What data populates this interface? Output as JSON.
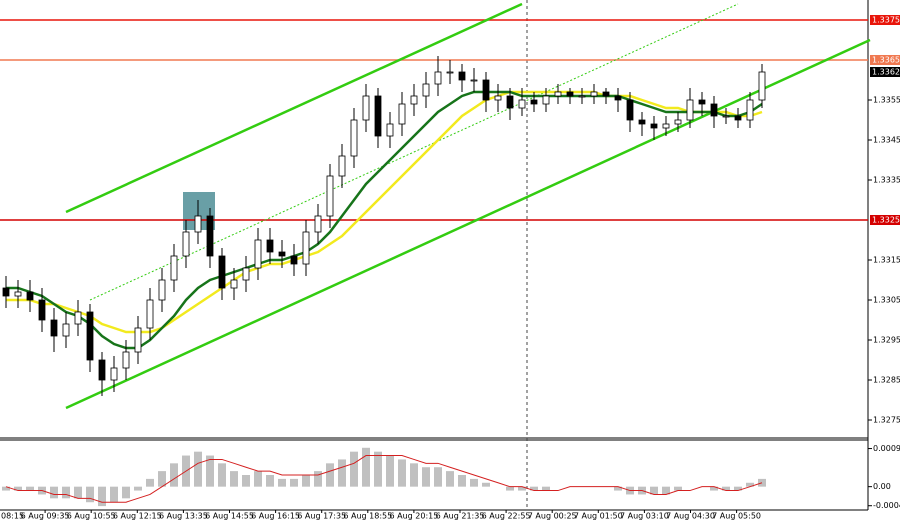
{
  "chart_data": {
    "type": "candlestick",
    "open": [
      1.3308,
      1.3306,
      1.3307,
      1.3305,
      1.33,
      1.3296,
      1.3299,
      1.3302,
      1.329,
      1.3285,
      1.3288,
      1.3292,
      1.3298,
      1.3305,
      1.331,
      1.3316,
      1.3322,
      1.3326,
      1.3316,
      1.3308,
      1.331,
      1.3313,
      1.332,
      1.3317,
      1.3316,
      1.3314,
      1.3322,
      1.3326,
      1.3336,
      1.3341,
      1.335,
      1.3356,
      1.3346,
      1.3349,
      1.3354,
      1.3356,
      1.3359,
      1.3362,
      1.3362,
      1.336,
      1.336,
      1.3355,
      1.3356,
      1.3353,
      1.3355,
      1.3354,
      1.3356,
      1.3357,
      1.3356,
      1.3356,
      1.3357,
      1.3356,
      1.3355,
      1.335,
      1.3349,
      1.3348,
      1.3349,
      1.335,
      1.3355,
      1.3354,
      1.3351,
      1.3351,
      1.335,
      1.3355
    ],
    "high": [
      1.3311,
      1.331,
      1.331,
      1.3308,
      1.3303,
      1.3302,
      1.3305,
      1.3304,
      1.3292,
      1.3291,
      1.3295,
      1.3301,
      1.3308,
      1.3313,
      1.3319,
      1.3325,
      1.333,
      1.3328,
      1.3318,
      1.3313,
      1.3316,
      1.3323,
      1.3323,
      1.332,
      1.3319,
      1.3325,
      1.3329,
      1.3339,
      1.3344,
      1.3353,
      1.3359,
      1.3358,
      1.3352,
      1.3357,
      1.3359,
      1.3362,
      1.3366,
      1.3365,
      1.3364,
      1.3363,
      1.3362,
      1.3359,
      1.3358,
      1.3358,
      1.3357,
      1.3358,
      1.3359,
      1.3358,
      1.3358,
      1.3359,
      1.3358,
      1.3358,
      1.3357,
      1.3352,
      1.3351,
      1.3351,
      1.3352,
      1.3358,
      1.3357,
      1.3356,
      1.3353,
      1.3353,
      1.3357,
      1.3364
    ],
    "low": [
      1.3303,
      1.3303,
      1.3302,
      1.3297,
      1.3292,
      1.3293,
      1.3296,
      1.3287,
      1.3281,
      1.3282,
      1.3285,
      1.3289,
      1.3295,
      1.3302,
      1.3307,
      1.3313,
      1.3319,
      1.3313,
      1.3305,
      1.3305,
      1.3307,
      1.331,
      1.3314,
      1.3313,
      1.3311,
      1.3311,
      1.3319,
      1.3323,
      1.3333,
      1.3338,
      1.3347,
      1.3343,
      1.3343,
      1.3346,
      1.3351,
      1.3353,
      1.3356,
      1.3359,
      1.3357,
      1.3357,
      1.3352,
      1.3352,
      1.335,
      1.3351,
      1.3352,
      1.3352,
      1.3354,
      1.3354,
      1.3354,
      1.3354,
      1.3354,
      1.3352,
      1.3347,
      1.3346,
      1.3345,
      1.3346,
      1.3347,
      1.3348,
      1.3351,
      1.3348,
      1.3349,
      1.3348,
      1.3348,
      1.3353
    ],
    "close": [
      1.3306,
      1.3307,
      1.3305,
      1.33,
      1.3296,
      1.3299,
      1.3302,
      1.329,
      1.3285,
      1.3288,
      1.3292,
      1.3298,
      1.3305,
      1.331,
      1.3316,
      1.3322,
      1.3326,
      1.3316,
      1.3308,
      1.331,
      1.3313,
      1.332,
      1.3317,
      1.3316,
      1.3314,
      1.3322,
      1.3326,
      1.3336,
      1.3341,
      1.335,
      1.3356,
      1.3346,
      1.3349,
      1.3354,
      1.3356,
      1.3359,
      1.3362,
      1.3362,
      1.336,
      1.336,
      1.3355,
      1.3356,
      1.3353,
      1.3355,
      1.3354,
      1.3356,
      1.3357,
      1.3356,
      1.3356,
      1.3357,
      1.3356,
      1.3355,
      1.335,
      1.3349,
      1.3348,
      1.3349,
      1.335,
      1.3355,
      1.3354,
      1.3351,
      1.3351,
      1.335,
      1.3355,
      1.3362
    ],
    "ylim": [
      1.327,
      1.338
    ],
    "yticks": [
      1.3275,
      1.3285,
      1.3295,
      1.3305,
      1.3315,
      1.3335,
      1.3345,
      1.3355
    ],
    "x_labels": [
      "08:15",
      "6 Aug 09:35",
      "6 Aug 10:55",
      "6 Aug 12:15",
      "6 Aug 13:35",
      "6 Aug 14:55",
      "6 Aug 16:15",
      "6 Aug 17:35",
      "6 Aug 18:55",
      "6 Aug 20:15",
      "6 Aug 21:35",
      "6 Aug 22:55",
      "7 Aug 00:25",
      "7 Aug 01:50",
      "7 Aug 03:10",
      "7 Aug 04:30",
      "7 Aug 05:50"
    ],
    "levels": [
      {
        "value": 1.3375,
        "color": "#e8150a"
      },
      {
        "value": 1.3365,
        "color": "#f07850"
      },
      {
        "value": 1.3325,
        "color": "#d40000"
      }
    ],
    "current_price": 1.3362,
    "moving_averages": [
      {
        "color": "#f2ea1e",
        "values": [
          1.3305,
          1.3305,
          1.3305,
          1.3304,
          1.3304,
          1.3303,
          1.3302,
          1.3301,
          1.3299,
          1.3298,
          1.3297,
          1.3297,
          1.3297,
          1.3298,
          1.33,
          1.3302,
          1.3304,
          1.3306,
          1.3308,
          1.331,
          1.3312,
          1.3313,
          1.3314,
          1.3314,
          1.3315,
          1.3316,
          1.3317,
          1.3319,
          1.3321,
          1.3324,
          1.3327,
          1.333,
          1.3333,
          1.3336,
          1.3339,
          1.3342,
          1.3345,
          1.3348,
          1.3351,
          1.3353,
          1.3355,
          1.3356,
          1.3357,
          1.3357,
          1.3357,
          1.3357,
          1.3357,
          1.3357,
          1.3357,
          1.3357,
          1.3356,
          1.3356,
          1.3356,
          1.3355,
          1.3354,
          1.3353,
          1.3353,
          1.3352,
          1.3352,
          1.3352,
          1.3352,
          1.3351,
          1.3351,
          1.3352
        ]
      },
      {
        "color": "#17741a",
        "values": [
          1.3308,
          1.3308,
          1.3307,
          1.3306,
          1.3304,
          1.3302,
          1.3301,
          1.3299,
          1.3296,
          1.3294,
          1.3293,
          1.3293,
          1.3295,
          1.3298,
          1.3301,
          1.3305,
          1.3308,
          1.331,
          1.3311,
          1.3312,
          1.3313,
          1.3314,
          1.3315,
          1.3315,
          1.3316,
          1.3317,
          1.3319,
          1.3322,
          1.3326,
          1.333,
          1.3334,
          1.3337,
          1.334,
          1.3343,
          1.3346,
          1.3349,
          1.3352,
          1.3354,
          1.3356,
          1.3357,
          1.3357,
          1.3357,
          1.3357,
          1.3356,
          1.3356,
          1.3356,
          1.3356,
          1.3356,
          1.3356,
          1.3356,
          1.3356,
          1.3356,
          1.3355,
          1.3354,
          1.3353,
          1.3352,
          1.3352,
          1.3352,
          1.3352,
          1.3352,
          1.3351,
          1.3351,
          1.3352,
          1.3354
        ]
      }
    ],
    "trendlines": [
      {
        "color": "#33cc11",
        "style": "solid",
        "x": [
          5,
          43
        ],
        "values": [
          1.3327,
          1.3379
        ]
      },
      {
        "color": "#33cc11",
        "style": "solid",
        "x": [
          5,
          72
        ],
        "values": [
          1.3278,
          1.337
        ]
      },
      {
        "color": "#33cc11",
        "style": "dotted",
        "x": [
          7,
          61
        ],
        "values": [
          1.3305,
          1.3379
        ]
      }
    ],
    "macd": {
      "histogram_color": "#c0c0c0",
      "signal_color": "#d42020",
      "histogram": [
        -0.0001,
        -0.0001,
        -0.0001,
        -0.0002,
        -0.0003,
        -0.0003,
        -0.0003,
        -0.0004,
        -0.0005,
        -0.0004,
        -0.0003,
        -0.0001,
        0.0002,
        0.0004,
        0.0006,
        0.0008,
        0.0009,
        0.0008,
        0.0006,
        0.0004,
        0.0003,
        0.0004,
        0.0003,
        0.0002,
        0.0002,
        0.0003,
        0.0004,
        0.0006,
        0.0007,
        0.0009,
        0.001,
        0.0009,
        0.0008,
        0.0007,
        0.0006,
        0.0005,
        0.0005,
        0.0004,
        0.0003,
        0.0002,
        0.0001,
        0,
        -0.0001,
        -0.0001,
        -0.0001,
        -0.0001,
        0,
        0,
        0,
        0,
        0,
        -0.0001,
        -0.0002,
        -0.0002,
        -0.0002,
        -0.0002,
        -0.0001,
        0,
        0,
        -0.0001,
        -0.0001,
        -0.0001,
        0.0001,
        0.0002
      ],
      "signal": [
        0,
        -0.0001,
        -0.0001,
        -0.0001,
        -0.0002,
        -0.0002,
        -0.0003,
        -0.0003,
        -0.0004,
        -0.0004,
        -0.0004,
        -0.0003,
        -0.0002,
        0,
        0.0002,
        0.0004,
        0.0006,
        0.0007,
        0.0007,
        0.0006,
        0.0005,
        0.0004,
        0.0004,
        0.0003,
        0.0003,
        0.0003,
        0.0003,
        0.0004,
        0.0005,
        0.0006,
        0.0008,
        0.0008,
        0.0008,
        0.0008,
        0.0007,
        0.0006,
        0.0006,
        0.0005,
        0.0004,
        0.0003,
        0.0002,
        0.0001,
        0,
        0,
        -0.0001,
        -0.0001,
        -0.0001,
        0,
        0,
        0,
        0,
        0,
        -0.0001,
        -0.0001,
        -0.0002,
        -0.0002,
        -0.0001,
        -0.0001,
        0,
        0,
        -0.0001,
        -0.0001,
        0,
        0.0001
      ],
      "ylim": [
        -0.0006,
        0.0012
      ],
      "yticks": [
        0.00098,
        {
          "value": 0,
          "label": "0.00"
        },
        -0.00049
      ]
    }
  }
}
